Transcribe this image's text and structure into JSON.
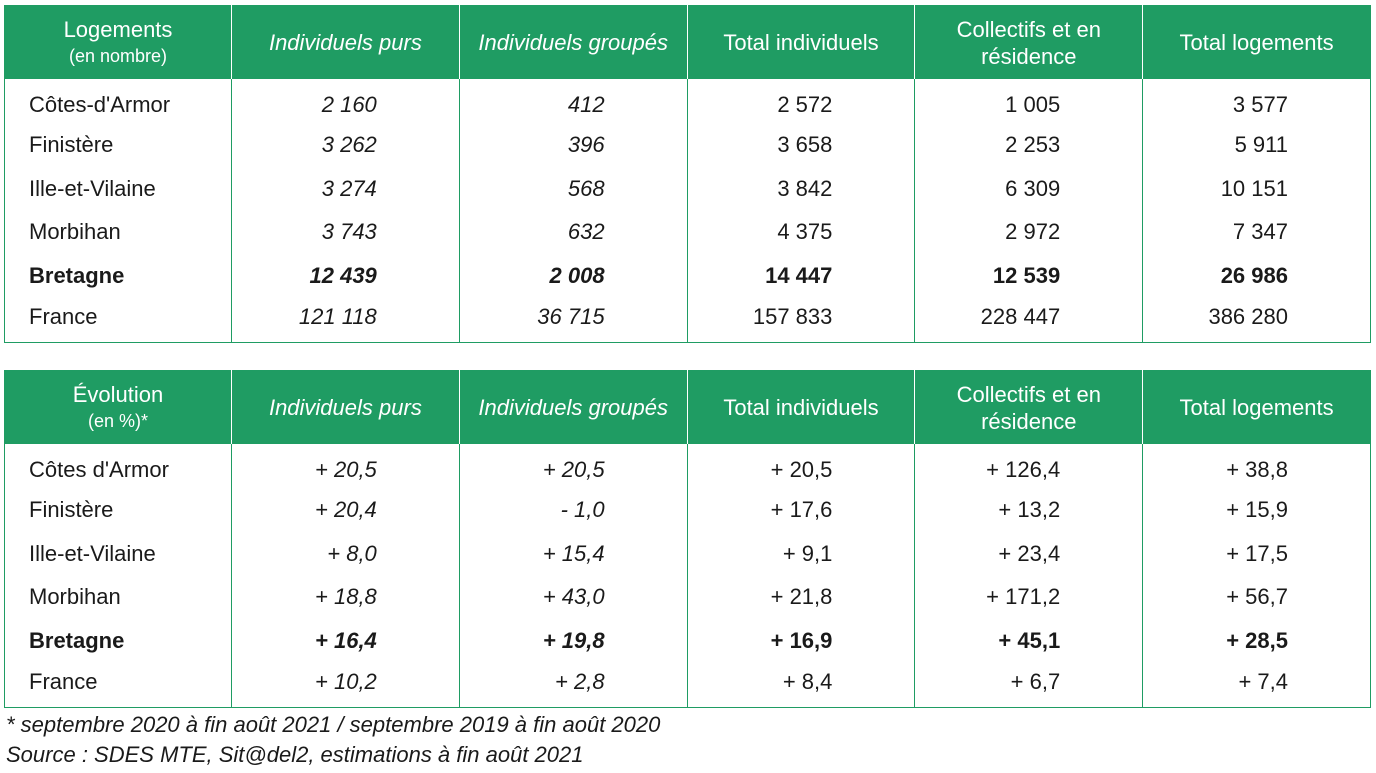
{
  "colors": {
    "header_bg": "#1f9c63",
    "header_text": "#ffffff",
    "border": "#1f9c63"
  },
  "table1": {
    "header": {
      "first_main": "Logements",
      "first_sub": "(en nombre)",
      "cols": [
        "Individuels purs",
        "Individuels groupés",
        "Total individuels",
        "Collectifs et en résidence",
        "Total logements"
      ]
    },
    "rows": [
      {
        "label": "Côtes-d'Armor",
        "values": [
          "2 160",
          "412",
          "2 572",
          "1 005",
          "3 577"
        ]
      },
      {
        "label": "Finistère",
        "values": [
          "3 262",
          "396",
          "3 658",
          "2 253",
          "5 911"
        ]
      },
      {
        "label": "Ille-et-Vilaine",
        "values": [
          "3 274",
          "568",
          "3 842",
          "6 309",
          "10 151"
        ]
      },
      {
        "label": "Morbihan",
        "values": [
          "3 743",
          "632",
          "4 375",
          "2 972",
          "7 347"
        ]
      },
      {
        "label": "Bretagne",
        "values": [
          "12 439",
          "2 008",
          "14 447",
          "12 539",
          "26 986"
        ]
      },
      {
        "label": "France",
        "values": [
          "121 118",
          "36 715",
          "157 833",
          "228 447",
          "386 280"
        ]
      }
    ]
  },
  "table2": {
    "header": {
      "first_main": "Évolution",
      "first_sub": "(en %)*",
      "cols": [
        "Individuels purs",
        "Individuels groupés",
        "Total individuels",
        "Collectifs et en résidence",
        "Total logements"
      ]
    },
    "rows": [
      {
        "label": "Côtes d'Armor",
        "values": [
          "+ 20,5",
          "+ 20,5",
          "+ 20,5",
          "+ 126,4",
          "+ 38,8"
        ]
      },
      {
        "label": "Finistère",
        "values": [
          "+ 20,4",
          "- 1,0",
          "+ 17,6",
          "+ 13,2",
          "+ 15,9"
        ]
      },
      {
        "label": "Ille-et-Vilaine",
        "values": [
          "+ 8,0",
          "+ 15,4",
          "+ 9,1",
          "+ 23,4",
          "+ 17,5"
        ]
      },
      {
        "label": "Morbihan",
        "values": [
          "+ 18,8",
          "+ 43,0",
          "+ 21,8",
          "+ 171,2",
          "+ 56,7"
        ]
      },
      {
        "label": "Bretagne",
        "values": [
          "+ 16,4",
          "+ 19,8",
          "+ 16,9",
          "+ 45,1",
          "+ 28,5"
        ]
      },
      {
        "label": "France",
        "values": [
          "+ 10,2",
          "+ 2,8",
          "+ 8,4",
          "+ 6,7",
          "+ 7,4"
        ]
      }
    ]
  },
  "footnote": "* septembre 2020 à fin août 2021 / septembre 2019 à fin août 2020",
  "source": "Source : SDES MTE, Sit@del2, estimations à fin août 2021"
}
